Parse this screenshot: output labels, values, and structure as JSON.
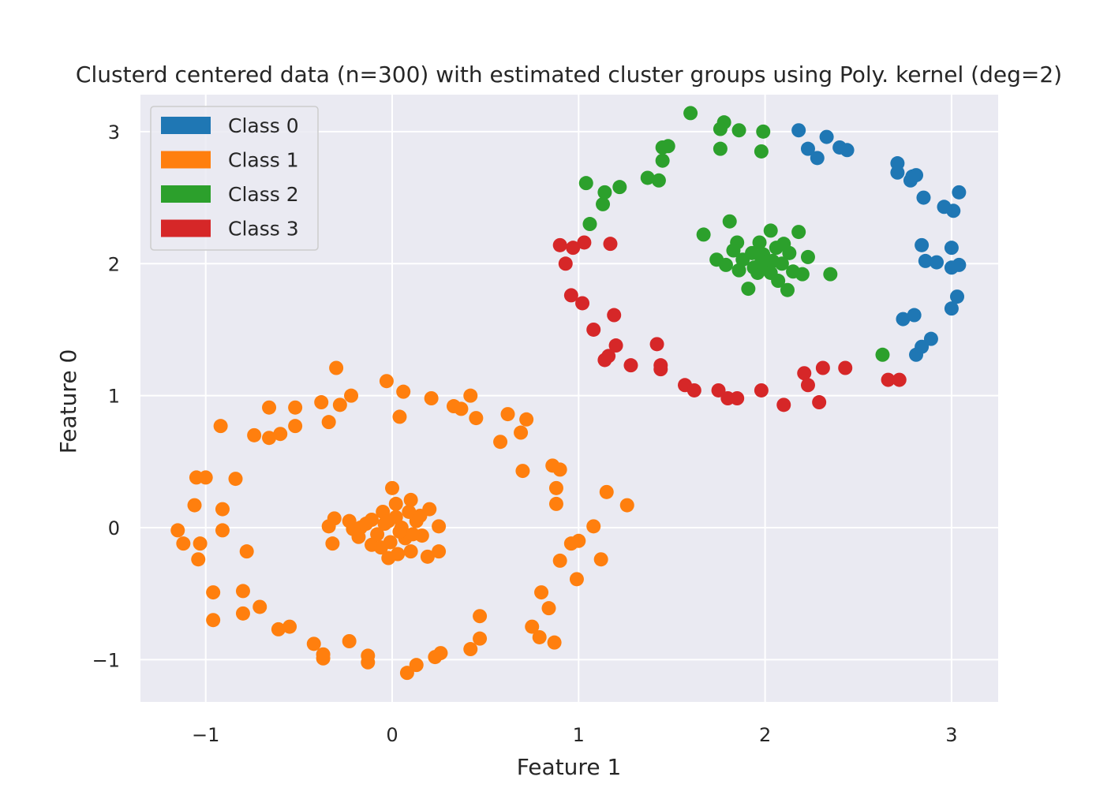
{
  "chart_data": {
    "type": "scatter",
    "title": "Clusterd centered data (n=300) with estimated cluster groups using Poly. kernel (deg=2)",
    "xlabel": "Feature 1",
    "ylabel": "Feature 0",
    "xlim": [
      -1.35,
      3.25
    ],
    "ylim": [
      -1.32,
      3.28
    ],
    "xticks": [
      -1,
      0,
      1,
      2,
      3
    ],
    "yticks": [
      -1,
      0,
      1,
      2,
      3
    ],
    "xtick_labels": [
      "−1",
      "0",
      "1",
      "2",
      "3"
    ],
    "ytick_labels": [
      "−1",
      "0",
      "1",
      "2",
      "3"
    ],
    "grid": true,
    "background": "#eaeaf2",
    "legend_position": "top-left",
    "series": [
      {
        "name": "Class 0",
        "color": "#1f77b4",
        "points": [
          [
            2.18,
            3.01
          ],
          [
            2.23,
            2.87
          ],
          [
            2.28,
            2.8
          ],
          [
            2.33,
            2.96
          ],
          [
            2.4,
            2.88
          ],
          [
            2.44,
            2.86
          ],
          [
            2.71,
            2.76
          ],
          [
            2.71,
            2.69
          ],
          [
            2.78,
            2.63
          ],
          [
            2.79,
            2.66
          ],
          [
            2.81,
            2.67
          ],
          [
            2.85,
            2.5
          ],
          [
            2.96,
            2.43
          ],
          [
            3.01,
            2.4
          ],
          [
            3.04,
            2.54
          ],
          [
            2.84,
            2.14
          ],
          [
            2.86,
            2.02
          ],
          [
            2.92,
            2.01
          ],
          [
            3.0,
            2.12
          ],
          [
            3.0,
            1.97
          ],
          [
            3.04,
            1.99
          ],
          [
            3.03,
            1.75
          ],
          [
            3.0,
            1.66
          ],
          [
            2.74,
            1.58
          ],
          [
            2.8,
            1.61
          ],
          [
            2.89,
            1.43
          ],
          [
            2.84,
            1.37
          ],
          [
            2.81,
            1.31
          ]
        ]
      },
      {
        "name": "Class 1",
        "color": "#ff7f0e",
        "points": [
          [
            -0.03,
            1.11
          ],
          [
            0.06,
            1.03
          ],
          [
            0.04,
            0.84
          ],
          [
            0.21,
            0.98
          ],
          [
            0.33,
            0.92
          ],
          [
            0.37,
            0.9
          ],
          [
            0.42,
            1.0
          ],
          [
            0.45,
            0.83
          ],
          [
            0.62,
            0.86
          ],
          [
            0.58,
            0.65
          ],
          [
            0.69,
            0.72
          ],
          [
            0.72,
            0.82
          ],
          [
            0.7,
            0.43
          ],
          [
            0.86,
            0.47
          ],
          [
            0.9,
            0.44
          ],
          [
            0.88,
            0.3
          ],
          [
            0.88,
            0.18
          ],
          [
            1.15,
            0.27
          ],
          [
            1.26,
            0.17
          ],
          [
            1.08,
            0.01
          ],
          [
            0.96,
            -0.12
          ],
          [
            1.0,
            -0.1
          ],
          [
            0.9,
            -0.25
          ],
          [
            1.12,
            -0.24
          ],
          [
            0.99,
            -0.39
          ],
          [
            0.8,
            -0.49
          ],
          [
            0.84,
            -0.61
          ],
          [
            0.75,
            -0.75
          ],
          [
            0.79,
            -0.83
          ],
          [
            0.87,
            -0.87
          ],
          [
            0.47,
            -0.67
          ],
          [
            0.47,
            -0.84
          ],
          [
            0.42,
            -0.92
          ],
          [
            0.23,
            -0.98
          ],
          [
            0.26,
            -0.95
          ],
          [
            0.13,
            -1.04
          ],
          [
            0.08,
            -1.1
          ],
          [
            -0.13,
            -0.97
          ],
          [
            -0.13,
            -1.02
          ],
          [
            -0.23,
            -0.86
          ],
          [
            -0.37,
            -0.96
          ],
          [
            -0.37,
            -0.99
          ],
          [
            -0.42,
            -0.88
          ],
          [
            -0.55,
            -0.75
          ],
          [
            -0.61,
            -0.77
          ],
          [
            -0.71,
            -0.6
          ],
          [
            -0.8,
            -0.65
          ],
          [
            -0.8,
            -0.48
          ],
          [
            -0.96,
            -0.49
          ],
          [
            -0.96,
            -0.7
          ],
          [
            -1.03,
            -0.12
          ],
          [
            -1.04,
            -0.24
          ],
          [
            -1.12,
            -0.12
          ],
          [
            -1.15,
            -0.02
          ],
          [
            -0.91,
            -0.02
          ],
          [
            -0.91,
            0.14
          ],
          [
            -1.06,
            0.17
          ],
          [
            -1.05,
            0.38
          ],
          [
            -1.0,
            0.38
          ],
          [
            -0.84,
            0.37
          ],
          [
            -0.78,
            -0.18
          ],
          [
            -0.74,
            0.7
          ],
          [
            -0.66,
            0.68
          ],
          [
            -0.6,
            0.71
          ],
          [
            -0.66,
            0.91
          ],
          [
            -0.52,
            0.91
          ],
          [
            -0.52,
            0.77
          ],
          [
            -0.92,
            0.77
          ],
          [
            -0.38,
            0.95
          ],
          [
            -0.34,
            0.8
          ],
          [
            -0.28,
            0.93
          ],
          [
            -0.22,
            1.0
          ],
          [
            -0.3,
            1.21
          ],
          [
            -0.31,
            0.07
          ],
          [
            -0.34,
            0.01
          ],
          [
            -0.32,
            -0.12
          ],
          [
            -0.23,
            0.05
          ],
          [
            -0.17,
            0.0
          ],
          [
            -0.11,
            0.06
          ],
          [
            -0.05,
            0.12
          ],
          [
            0.0,
            0.3
          ],
          [
            0.02,
            0.18
          ],
          [
            0.1,
            0.21
          ],
          [
            0.2,
            0.14
          ],
          [
            0.25,
            0.01
          ],
          [
            0.25,
            -0.18
          ],
          [
            0.19,
            -0.22
          ],
          [
            0.1,
            -0.18
          ],
          [
            0.03,
            -0.2
          ],
          [
            -0.02,
            -0.23
          ],
          [
            -0.11,
            -0.13
          ],
          [
            -0.18,
            -0.07
          ],
          [
            -0.21,
            -0.01
          ],
          [
            -0.08,
            -0.05
          ],
          [
            -0.04,
            0.03
          ],
          [
            0.05,
            0.0
          ],
          [
            0.13,
            0.05
          ],
          [
            0.16,
            -0.06
          ],
          [
            0.07,
            -0.08
          ],
          [
            -0.01,
            -0.11
          ],
          [
            0.02,
            0.08
          ],
          [
            0.09,
            0.12
          ],
          [
            -0.06,
            -0.15
          ],
          [
            0.15,
            0.09
          ],
          [
            0.11,
            -0.05
          ],
          [
            -0.14,
            0.03
          ],
          [
            0.04,
            -0.03
          ],
          [
            -0.02,
            0.05
          ]
        ]
      },
      {
        "name": "Class 2",
        "color": "#2ca02c",
        "points": [
          [
            1.6,
            3.14
          ],
          [
            1.78,
            3.07
          ],
          [
            1.76,
            3.02
          ],
          [
            1.86,
            3.01
          ],
          [
            1.99,
            3.0
          ],
          [
            1.98,
            2.85
          ],
          [
            1.76,
            2.87
          ],
          [
            1.48,
            2.89
          ],
          [
            1.45,
            2.88
          ],
          [
            1.45,
            2.78
          ],
          [
            1.37,
            2.65
          ],
          [
            1.43,
            2.63
          ],
          [
            1.22,
            2.58
          ],
          [
            1.14,
            2.54
          ],
          [
            1.04,
            2.61
          ],
          [
            1.13,
            2.45
          ],
          [
            1.06,
            2.3
          ],
          [
            1.67,
            2.22
          ],
          [
            1.81,
            2.32
          ],
          [
            1.74,
            2.03
          ],
          [
            2.35,
            1.92
          ],
          [
            2.63,
            1.31
          ],
          [
            1.79,
            1.99
          ],
          [
            1.85,
            2.16
          ],
          [
            1.91,
            1.81
          ],
          [
            2.12,
            1.8
          ],
          [
            2.23,
            2.05
          ],
          [
            2.18,
            2.24
          ],
          [
            2.03,
            2.25
          ],
          [
            1.93,
            2.08
          ],
          [
            1.96,
            1.93
          ],
          [
            2.01,
            1.97
          ],
          [
            2.06,
            2.12
          ],
          [
            2.09,
            2.0
          ],
          [
            2.15,
            1.94
          ],
          [
            1.88,
            2.03
          ],
          [
            1.83,
            2.1
          ],
          [
            1.99,
            2.07
          ],
          [
            2.07,
            1.87
          ],
          [
            2.13,
            2.08
          ],
          [
            1.97,
            2.16
          ],
          [
            2.04,
            2.02
          ],
          [
            1.94,
            1.97
          ],
          [
            2.2,
            1.92
          ],
          [
            2.03,
            1.93
          ],
          [
            1.98,
            2.01
          ],
          [
            1.86,
            1.95
          ],
          [
            2.1,
            2.15
          ]
        ]
      },
      {
        "name": "Class 3",
        "color": "#d62728",
        "points": [
          [
            0.9,
            2.14
          ],
          [
            0.97,
            2.12
          ],
          [
            1.03,
            2.16
          ],
          [
            1.17,
            2.15
          ],
          [
            0.93,
            2.0
          ],
          [
            0.96,
            1.76
          ],
          [
            1.02,
            1.7
          ],
          [
            1.08,
            1.5
          ],
          [
            1.19,
            1.61
          ],
          [
            1.2,
            1.38
          ],
          [
            1.14,
            1.27
          ],
          [
            1.16,
            1.3
          ],
          [
            1.28,
            1.23
          ],
          [
            1.42,
            1.39
          ],
          [
            1.44,
            1.23
          ],
          [
            1.44,
            1.2
          ],
          [
            1.57,
            1.08
          ],
          [
            1.62,
            1.04
          ],
          [
            1.75,
            1.04
          ],
          [
            1.8,
            0.98
          ],
          [
            1.85,
            0.98
          ],
          [
            1.98,
            1.04
          ],
          [
            2.1,
            0.93
          ],
          [
            2.21,
            1.17
          ],
          [
            2.23,
            1.08
          ],
          [
            2.29,
            0.95
          ],
          [
            2.31,
            1.21
          ],
          [
            2.43,
            1.21
          ],
          [
            2.66,
            1.12
          ],
          [
            2.72,
            1.12
          ]
        ]
      }
    ]
  }
}
